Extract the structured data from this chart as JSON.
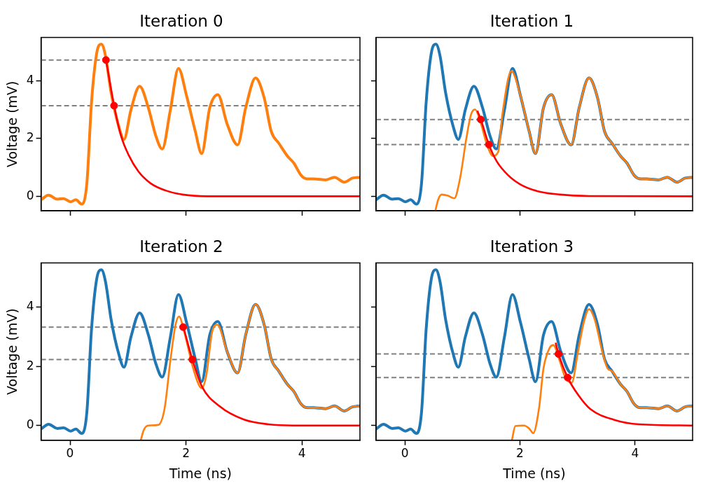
{
  "chart_data": [
    {
      "type": "line",
      "title": "Iteration 0",
      "ylabel": "Voltage (mV)",
      "xlim": [
        -0.5,
        5
      ],
      "ylim": [
        -0.5,
        5.5
      ],
      "xticks": [
        0,
        2,
        4
      ],
      "yticks": [
        0,
        2,
        4
      ],
      "tick_labels": "y",
      "line_style": "solid",
      "series": [
        {
          "color": "#ff7f0e",
          "x": [
            -0.5,
            -0.37,
            -0.22,
            -0.11,
            0.01,
            0.1,
            0.2,
            0.29,
            0.37,
            0.46,
            0.54,
            0.61,
            0.71,
            0.84,
            0.93,
            1.05,
            1.2,
            1.35,
            1.48,
            1.59,
            1.73,
            1.87,
            2.01,
            2.16,
            2.27,
            2.41,
            2.55,
            2.71,
            2.89,
            3.03,
            3.2,
            3.35,
            3.47,
            3.6,
            3.75,
            3.86,
            3.98,
            4.07,
            4.24,
            4.41,
            4.56,
            4.73,
            4.87,
            5
          ],
          "values": [
            -0.12,
            0.04,
            -0.1,
            -0.08,
            -0.19,
            -0.12,
            -0.27,
            0.45,
            3.24,
            4.96,
            5.27,
            4.88,
            3.57,
            2.42,
            1.97,
            2.99,
            3.81,
            3.07,
            2.09,
            1.64,
            2.99,
            4.43,
            3.48,
            2.25,
            1.48,
            3.07,
            3.52,
            2.5,
            1.78,
            3.07,
            4.1,
            3.4,
            2.25,
            1.84,
            1.39,
            1.15,
            0.74,
            0.61,
            0.6,
            0.57,
            0.66,
            0.49,
            0.63,
            0.66
          ]
        },
        {
          "color": "#ff0000",
          "x": [
            0.62,
            0.76,
            0.88,
            1.01,
            1.18,
            1.39,
            1.65,
            1.94,
            2.37,
            5
          ],
          "values": [
            4.73,
            3.14,
            2.09,
            1.43,
            0.86,
            0.45,
            0.2,
            0.06,
            0,
            0
          ]
        },
        {
          "type": "scatter",
          "marker": "circle",
          "color": "#ff0000",
          "x": [
            0.62,
            0.76
          ],
          "values": [
            4.72,
            3.14
          ]
        }
      ],
      "ref_lines": [
        {
          "axis": "y",
          "value": 4.72,
          "color": "#808080",
          "line_style": "dashed"
        },
        {
          "axis": "y",
          "value": 3.14,
          "color": "#808080",
          "line_style": "dashed"
        }
      ]
    },
    {
      "type": "line",
      "title": "Iteration 1",
      "xlim": [
        -0.5,
        5
      ],
      "ylim": [
        -0.5,
        5.5
      ],
      "xticks": [
        0,
        2,
        4
      ],
      "yticks": [
        0,
        2,
        4
      ],
      "tick_labels": false,
      "line_style": "solid",
      "series": [
        {
          "color": "#1f77b4",
          "x": [
            -0.5,
            -0.37,
            -0.22,
            -0.11,
            0.01,
            0.1,
            0.2,
            0.29,
            0.37,
            0.46,
            0.54,
            0.61,
            0.71,
            0.84,
            0.93,
            1.05,
            1.2,
            1.35,
            1.48,
            1.59,
            1.73,
            1.87,
            2.01,
            2.16,
            2.27,
            2.41,
            2.55,
            2.71,
            2.89,
            3.03,
            3.2,
            3.35,
            3.47,
            3.6,
            3.75,
            3.86,
            3.98,
            4.07,
            4.24,
            4.41,
            4.56,
            4.73,
            4.87,
            5
          ],
          "values": [
            -0.12,
            0.04,
            -0.1,
            -0.08,
            -0.19,
            -0.12,
            -0.27,
            0.45,
            3.24,
            4.96,
            5.27,
            4.88,
            3.57,
            2.42,
            1.97,
            2.99,
            3.81,
            3.07,
            2.09,
            1.64,
            2.99,
            4.43,
            3.48,
            2.25,
            1.48,
            3.07,
            3.52,
            2.5,
            1.78,
            3.07,
            4.1,
            3.4,
            2.25,
            1.84,
            1.39,
            1.15,
            0.74,
            0.61,
            0.6,
            0.57,
            0.66,
            0.49,
            0.63,
            0.66
          ]
        },
        {
          "color": "#ff7f0e",
          "x": [
            0.53,
            0.58,
            0.64,
            0.75,
            0.86,
            0.96,
            1.07,
            1.15,
            1.22,
            1.3,
            1.43,
            1.53,
            1.62,
            1.7,
            1.85,
            2.01,
            2.16,
            2.27,
            2.41,
            2.55,
            2.71,
            2.89,
            3.03,
            3.2,
            3.35,
            3.47,
            3.6,
            3.75,
            3.86,
            3.98,
            4.07,
            4.24,
            4.41,
            4.56,
            4.73,
            4.87,
            5
          ],
          "values": [
            -0.5,
            -0.11,
            0.06,
            0.02,
            -0.07,
            0.63,
            2.02,
            2.83,
            3.01,
            2.67,
            1.77,
            1.4,
            1.53,
            2.91,
            4.34,
            3.48,
            2.25,
            1.48,
            3.07,
            3.52,
            2.5,
            1.78,
            3.07,
            4.1,
            3.4,
            2.25,
            1.84,
            1.39,
            1.15,
            0.74,
            0.61,
            0.6,
            0.57,
            0.66,
            0.49,
            0.63,
            0.66
          ]
        },
        {
          "color": "#ff0000",
          "x": [
            1.26,
            1.32,
            1.46,
            1.6,
            1.8,
            2.0,
            2.3,
            2.7,
            3.2,
            5
          ],
          "values": [
            2.96,
            2.66,
            1.79,
            1.2,
            0.72,
            0.42,
            0.18,
            0.06,
            0.01,
            0
          ]
        },
        {
          "type": "scatter",
          "marker": "circle",
          "color": "#ff0000",
          "x": [
            1.32,
            1.46
          ],
          "values": [
            2.66,
            1.79
          ]
        }
      ],
      "ref_lines": [
        {
          "axis": "y",
          "value": 2.66,
          "color": "#808080",
          "line_style": "dashed"
        },
        {
          "axis": "y",
          "value": 1.79,
          "color": "#808080",
          "line_style": "dashed"
        }
      ]
    },
    {
      "type": "line",
      "title": "Iteration 2",
      "xlabel": "Time (ns)",
      "ylabel": "Voltage (mV)",
      "xlim": [
        -0.5,
        5
      ],
      "ylim": [
        -0.5,
        5.5
      ],
      "xticks": [
        0,
        2,
        4
      ],
      "yticks": [
        0,
        2,
        4
      ],
      "line_style": "solid",
      "series": [
        {
          "color": "#1f77b4",
          "x": [
            -0.5,
            -0.37,
            -0.22,
            -0.11,
            0.01,
            0.1,
            0.2,
            0.29,
            0.37,
            0.46,
            0.54,
            0.61,
            0.71,
            0.84,
            0.93,
            1.05,
            1.2,
            1.35,
            1.48,
            1.59,
            1.73,
            1.87,
            2.01,
            2.16,
            2.27,
            2.41,
            2.55,
            2.71,
            2.89,
            3.03,
            3.2,
            3.35,
            3.47,
            3.6,
            3.75,
            3.86,
            3.98,
            4.07,
            4.24,
            4.41,
            4.56,
            4.73,
            4.87,
            5
          ],
          "values": [
            -0.12,
            0.04,
            -0.1,
            -0.08,
            -0.19,
            -0.12,
            -0.27,
            0.45,
            3.24,
            4.96,
            5.27,
            4.88,
            3.57,
            2.42,
            1.97,
            2.99,
            3.81,
            3.07,
            2.09,
            1.64,
            2.99,
            4.43,
            3.48,
            2.25,
            1.48,
            3.07,
            3.52,
            2.5,
            1.78,
            3.07,
            4.1,
            3.4,
            2.25,
            1.84,
            1.39,
            1.15,
            0.74,
            0.61,
            0.6,
            0.57,
            0.66,
            0.49,
            0.63,
            0.66
          ]
        },
        {
          "color": "#ff7f0e",
          "x": [
            1.22,
            1.27,
            1.35,
            1.52,
            1.63,
            1.73,
            1.82,
            1.88,
            1.97,
            2.11,
            2.22,
            2.27,
            2.35,
            2.45,
            2.54,
            2.71,
            2.89,
            3.03,
            3.2,
            3.35,
            3.47,
            3.6,
            3.75,
            3.86,
            3.98,
            4.07,
            4.24,
            4.41,
            4.56,
            4.73,
            4.87,
            5
          ],
          "values": [
            -0.5,
            -0.16,
            0,
            0.02,
            0.57,
            2.19,
            3.41,
            3.69,
            3.16,
            2.03,
            1.38,
            1.26,
            1.7,
            3.16,
            3.41,
            2.5,
            1.78,
            3.07,
            4.1,
            3.4,
            2.25,
            1.84,
            1.39,
            1.15,
            0.74,
            0.61,
            0.6,
            0.57,
            0.66,
            0.49,
            0.63,
            0.66
          ]
        },
        {
          "color": "#ff0000",
          "x": [
            1.95,
            2.11,
            2.28,
            2.58,
            3.0,
            3.42,
            3.85,
            5
          ],
          "values": [
            3.37,
            2.23,
            1.3,
            0.65,
            0.2,
            0.04,
            0,
            0
          ]
        },
        {
          "type": "scatter",
          "marker": "circle",
          "color": "#ff0000",
          "x": [
            1.95,
            2.11
          ],
          "values": [
            3.33,
            2.23
          ]
        }
      ],
      "ref_lines": [
        {
          "axis": "y",
          "value": 3.33,
          "color": "#808080",
          "line_style": "dashed"
        },
        {
          "axis": "y",
          "value": 2.23,
          "color": "#808080",
          "line_style": "dashed"
        }
      ]
    },
    {
      "type": "line",
      "title": "Iteration 3",
      "xlabel": "Time (ns)",
      "xlim": [
        -0.5,
        5
      ],
      "ylim": [
        -0.5,
        5.5
      ],
      "xticks": [
        0,
        2,
        4
      ],
      "yticks": [
        0,
        2,
        4
      ],
      "tick_labels": "x",
      "line_style": "solid",
      "series": [
        {
          "color": "#1f77b4",
          "x": [
            -0.5,
            -0.37,
            -0.22,
            -0.11,
            0.01,
            0.1,
            0.2,
            0.29,
            0.37,
            0.46,
            0.54,
            0.61,
            0.71,
            0.84,
            0.93,
            1.05,
            1.2,
            1.35,
            1.48,
            1.59,
            1.73,
            1.87,
            2.01,
            2.16,
            2.27,
            2.41,
            2.55,
            2.71,
            2.89,
            3.03,
            3.2,
            3.35,
            3.47,
            3.6,
            3.75,
            3.86,
            3.98,
            4.07,
            4.24,
            4.41,
            4.56,
            4.73,
            4.87,
            5
          ],
          "values": [
            -0.12,
            0.04,
            -0.1,
            -0.08,
            -0.19,
            -0.12,
            -0.27,
            0.45,
            3.24,
            4.96,
            5.27,
            4.88,
            3.57,
            2.42,
            1.97,
            2.99,
            3.81,
            3.07,
            2.09,
            1.64,
            2.99,
            4.43,
            3.48,
            2.25,
            1.48,
            3.07,
            3.52,
            2.5,
            1.78,
            3.07,
            4.1,
            3.4,
            2.25,
            1.84,
            1.39,
            1.15,
            0.74,
            0.61,
            0.6,
            0.57,
            0.66,
            0.49,
            0.63,
            0.66
          ]
        },
        {
          "color": "#ff7f0e",
          "x": [
            1.86,
            1.92,
            2.07,
            2.16,
            2.23,
            2.33,
            2.41,
            2.52,
            2.58,
            2.69,
            2.79,
            2.9,
            3.01,
            3.11,
            3.2,
            3.3,
            3.43,
            3.52,
            3.6,
            3.75,
            3.86,
            3.98,
            4.07,
            4.24,
            4.41,
            4.56,
            4.73,
            4.87,
            5
          ],
          "values": [
            -0.5,
            -0.02,
            0,
            -0.1,
            -0.26,
            0.56,
            1.94,
            2.64,
            2.72,
            2.19,
            1.62,
            1.45,
            2.51,
            3.49,
            3.94,
            3.58,
            2.51,
            1.94,
            1.84,
            1.39,
            1.15,
            0.74,
            0.61,
            0.6,
            0.57,
            0.66,
            0.49,
            0.63,
            0.66
          ]
        },
        {
          "color": "#ff0000",
          "x": [
            2.62,
            2.67,
            2.83,
            3.01,
            3.22,
            3.64,
            4.07,
            5
          ],
          "values": [
            2.8,
            2.42,
            1.62,
            1.04,
            0.56,
            0.19,
            0.04,
            0
          ]
        },
        {
          "type": "scatter",
          "marker": "circle",
          "color": "#ff0000",
          "x": [
            2.67,
            2.83
          ],
          "values": [
            2.42,
            1.62
          ]
        }
      ],
      "ref_lines": [
        {
          "axis": "y",
          "value": 2.42,
          "color": "#808080",
          "line_style": "dashed"
        },
        {
          "axis": "y",
          "value": 1.62,
          "color": "#808080",
          "line_style": "dashed"
        }
      ]
    }
  ]
}
